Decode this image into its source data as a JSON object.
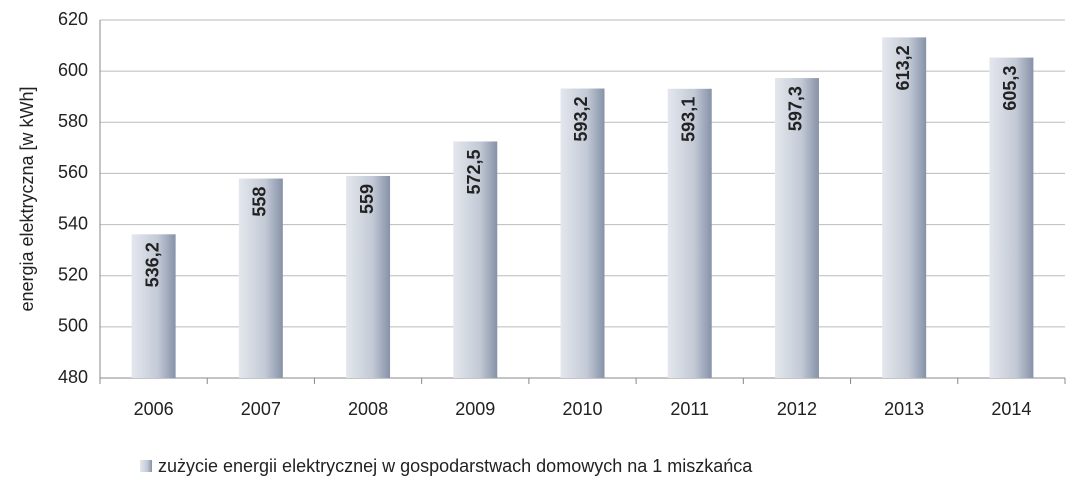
{
  "chart_data": {
    "type": "bar",
    "y_label": "energia elektryczna [w kWh]",
    "categories": [
      "2006",
      "2007",
      "2008",
      "2009",
      "2010",
      "2011",
      "2012",
      "2013",
      "2014"
    ],
    "series": [
      {
        "name": "zużycie energii elektrycznej w gospodarstwach domowych na 1 miszkańca",
        "color": "#a9b4c6",
        "values": [
          536.2,
          558,
          559,
          572.5,
          593.2,
          593.1,
          597.3,
          613.2,
          605.3
        ],
        "value_labels": [
          "536,2",
          "558",
          "559",
          "572,5",
          "593,2",
          "593,1",
          "597,3",
          "613,2",
          "605,3"
        ]
      }
    ],
    "ylim": [
      480,
      620
    ],
    "yticks": [
      480,
      500,
      520,
      540,
      560,
      580,
      600,
      620
    ],
    "grid": true
  }
}
